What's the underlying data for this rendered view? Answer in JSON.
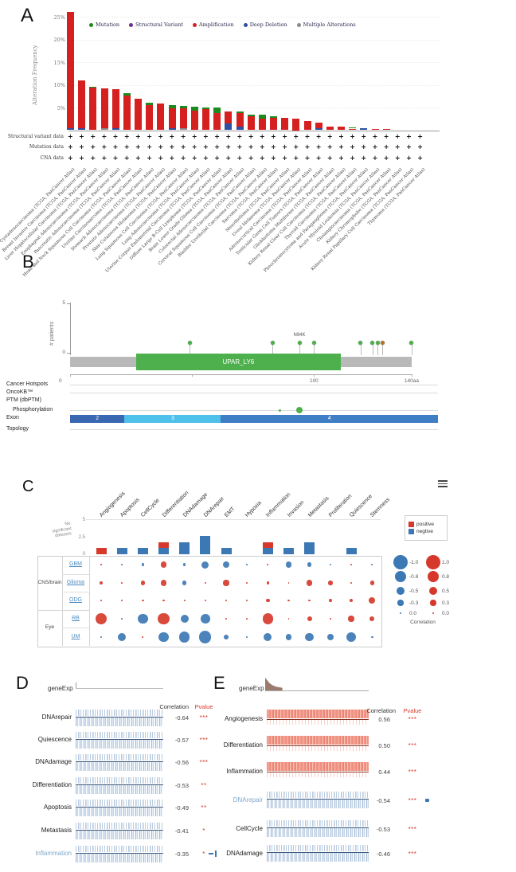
{
  "figure": {
    "panel_labels": {
      "a": "A",
      "b": "B",
      "c": "C",
      "d": "D",
      "e": "E"
    }
  },
  "panelA": {
    "ylabel": "Alteration Frequency",
    "yticks": [
      {
        "label": "25%",
        "value": 25
      },
      {
        "label": "20%",
        "value": 20
      },
      {
        "label": "15%",
        "value": 15
      },
      {
        "label": "10%",
        "value": 10
      },
      {
        "label": "5%",
        "value": 5
      }
    ],
    "legend": [
      {
        "label": "Mutation",
        "color": "#1d8a1d"
      },
      {
        "label": "Structural Variant",
        "color": "#6b2f8f"
      },
      {
        "label": "Amplification",
        "color": "#d61f1f"
      },
      {
        "label": "Deep Deletion",
        "color": "#2e4fa3"
      },
      {
        "label": "Multiple Alterations",
        "color": "#8a8a8a"
      }
    ],
    "data_rows": [
      "Structural variant data",
      "Mutation data",
      "CNA data"
    ],
    "plus_glyph": "+"
  },
  "panelB": {
    "ylabel": "# patients",
    "yticks": [
      "5",
      "0"
    ],
    "domain": {
      "label": "UPAR_LY6",
      "color": "#4db04d",
      "start_aa": 27,
      "end_aa": 111
    },
    "axis_ticks": [
      {
        "label": "0",
        "aa": 0
      },
      {
        "label": "",
        "aa": 50
      },
      {
        "label": "100",
        "aa": 100
      },
      {
        "label": "140aa",
        "aa": 140
      }
    ],
    "mutation_label": "N94K",
    "tracks": [
      "Cancer Hotspots",
      "OncoKB™",
      "PTM (dbPTM)",
      "Phosphorylation",
      "Exon",
      "Topology"
    ]
  },
  "panelC": {
    "menu_icon": "hamburger-icon",
    "ylabel_lines": [
      "No.",
      "significant",
      "datasets"
    ],
    "yticks": [
      {
        "label": "5",
        "value": 5
      },
      {
        "label": "2.5",
        "value": 2.5
      },
      {
        "label": "0",
        "value": 0
      }
    ],
    "top_legend": [
      {
        "label": "positive",
        "color": "#d6392b"
      },
      {
        "label": "negtive",
        "color": "#3c78b4"
      }
    ],
    "bubble_legend": {
      "title": "Correlation",
      "negative": [
        "-1.0",
        "-0.8",
        "-0.5",
        "-0.3",
        "0.0"
      ],
      "positive": [
        "1.0",
        "0.8",
        "0.5",
        "0.3",
        "0.0"
      ]
    },
    "row_groups": [
      {
        "name": "CNS/brain",
        "rows": [
          "GBM",
          "Glioma",
          "ODG"
        ]
      },
      {
        "name": "Eye",
        "rows": [
          "RB",
          "UM"
        ]
      }
    ]
  },
  "panelD": {
    "gene_label": "geneExp",
    "col_headers": {
      "correlation": "Correlation",
      "pvalue": "Pvalue"
    },
    "rows": [
      {
        "label": "DNArepair",
        "correlation": "-0.64",
        "pvalue": "***",
        "highlighted": false
      },
      {
        "label": "Quiescence",
        "correlation": "-0.57",
        "pvalue": "***",
        "highlighted": false
      },
      {
        "label": "DNAdamage",
        "correlation": "-0.56",
        "pvalue": "***",
        "highlighted": false
      },
      {
        "label": "Differentiation",
        "correlation": "-0.53",
        "pvalue": "**",
        "highlighted": false
      },
      {
        "label": "Apoptosis",
        "correlation": "-0.49",
        "pvalue": "**",
        "highlighted": false
      },
      {
        "label": "Metastasis",
        "correlation": "-0.41",
        "pvalue": "*",
        "highlighted": false
      },
      {
        "label": "Inflammation",
        "correlation": "-0.35",
        "pvalue": "*",
        "highlighted": true
      }
    ]
  },
  "panelE": {
    "gene_label": "geneExp",
    "col_headers": {
      "correlation": "Correlation",
      "pvalue": "Pvalue"
    },
    "rows": [
      {
        "label": "Angiogenesis",
        "correlation": "0.56",
        "pvalue": "***",
        "direction": "positive",
        "highlighted": false
      },
      {
        "label": "Differentiation",
        "correlation": "0.50",
        "pvalue": "***",
        "direction": "positive",
        "highlighted": false
      },
      {
        "label": "Inflammation",
        "correlation": "0.44",
        "pvalue": "***",
        "direction": "positive",
        "highlighted": false
      },
      {
        "label": "DNArepair",
        "correlation": "-0.54",
        "pvalue": "***",
        "direction": "negative",
        "highlighted": true
      },
      {
        "label": "CellCycle",
        "correlation": "-0.53",
        "pvalue": "***",
        "direction": "negative",
        "highlighted": false
      },
      {
        "label": "DNAdamage",
        "correlation": "-0.46",
        "pvalue": "***",
        "direction": "negative",
        "highlighted": false
      }
    ]
  },
  "chart_data": [
    {
      "id": "alteration-frequency",
      "type": "bar",
      "stacked": true,
      "title": "",
      "xlabel": "",
      "ylabel": "Alteration Frequency",
      "unit": "percent",
      "ylim": [
        0,
        27
      ],
      "categories": [
        "Ovarian Serous Cystadenocarcinoma (TCGA, PanCancer Atlas)",
        "Breast Invasive Carcinoma (TCGA, PanCancer Atlas)",
        "Liver Hepatocellular Carcinoma (TCGA, PanCancer Atlas)",
        "Esophageal Adenocarcinoma (TCGA, PanCancer Atlas)",
        "Pancreatic Adenocarcinoma (TCGA, PanCancer Atlas)",
        "Head and Neck Squamous Cell Carcinoma (TCGA, PanCancer Atlas)",
        "Uterine Carcinosarcoma (TCGA, PanCancer Atlas)",
        "Stomach Adenocarcinoma (TCGA, PanCancer Atlas)",
        "Prostate Adenocarcinoma (TCGA, PanCancer Atlas)",
        "Skin Cutaneous Melanoma (TCGA, PanCancer Atlas)",
        "Lung Squamous Cell Carcinoma (TCGA, PanCancer Atlas)",
        "Lung Adenocarcinoma (TCGA, PanCancer Atlas)",
        "Uterine Corpus Endometrial Carcinoma (TCGA, PanCancer Atlas)",
        "Diffuse Large B-Cell Lymphoma (TCGA, PanCancer Atlas)",
        "Brain Lower Grade Glioma (TCGA, PanCancer Atlas)",
        "Colorectal Adenocarcinoma (TCGA, PanCancer Atlas)",
        "Cervical Squamous Cell Carcinoma (TCGA, PanCancer Atlas)",
        "Bladder Urothelial Carcinoma (TCGA, PanCancer Atlas)",
        "Sarcoma (TCGA, PanCancer Atlas)",
        "Mesothelioma (TCGA, PanCancer Atlas)",
        "Uveal Melanoma (TCGA, PanCancer Atlas)",
        "Adrenocortical Carcinoma (TCGA, PanCancer Atlas)",
        "Testicular Germ Cell Tumors (TCGA, PanCancer Atlas)",
        "Glioblastoma Multiforme (TCGA, PanCancer Atlas)",
        "Kidney Renal Clear Cell Carcinoma (TCGA, PanCancer Atlas)",
        "Thyroid Carcinoma (TCGA, PanCancer Atlas)",
        "Pheochromocytoma and Paraganglioma (TCGA, PanCancer Atlas)",
        "Acute Myeloid Leukemia (TCGA, PanCancer Atlas)",
        "Cholangiocarcinoma (TCGA, PanCancer Atlas)",
        "Kidney Chromophobe (TCGA, PanCancer Atlas)",
        "Kidney Renal Papillary Cell Carcinoma (TCGA, PanCancer Atlas)",
        "Thymoma (TCGA, PanCancer Atlas)"
      ],
      "series": [
        {
          "name": "Mutation",
          "color": "#1d8a1d",
          "values": [
            0,
            0,
            0.3,
            0,
            0,
            0.5,
            0,
            0.5,
            0,
            0.8,
            0.4,
            0.9,
            0.3,
            1.3,
            0,
            0.3,
            0.5,
            0.8,
            0.3,
            0,
            0,
            0,
            0,
            0,
            0,
            0.2,
            0,
            0,
            0,
            0,
            0,
            0
          ]
        },
        {
          "name": "Amplification",
          "color": "#d61f1f",
          "values": [
            25.6,
            10.5,
            9.3,
            8.7,
            8.5,
            7.7,
            7.0,
            5.6,
            5.9,
            4.4,
            4.5,
            4.3,
            4.7,
            3.7,
            2.7,
            3.0,
            3.0,
            2.6,
            2.8,
            2.8,
            2.5,
            2.1,
            1.2,
            0.85,
            0.75,
            0.35,
            0,
            0.35,
            0.3,
            0,
            0,
            0
          ]
        },
        {
          "name": "Deep Deletion",
          "color": "#2e4fa3",
          "values": [
            0.4,
            0.4,
            0,
            0,
            0.5,
            0,
            0,
            0,
            0,
            0.4,
            0,
            0,
            0,
            0,
            1.5,
            0.8,
            0,
            0,
            0,
            0,
            0,
            0,
            0.5,
            0,
            0,
            0,
            0.4,
            0,
            0,
            0,
            0,
            0
          ]
        },
        {
          "name": "Multiple Alterations",
          "color": "#8a8a8a",
          "values": [
            0,
            0,
            0,
            0.5,
            0,
            0,
            0,
            0,
            0,
            0,
            0.4,
            0,
            0,
            0,
            0,
            0,
            0,
            0,
            0,
            0,
            0,
            0,
            0,
            0,
            0,
            0,
            0,
            0,
            0,
            0,
            0,
            0
          ]
        }
      ]
    },
    {
      "id": "plaur-lollipop",
      "type": "scatter",
      "ylabel": "# patients",
      "ylim": [
        0,
        5
      ],
      "xlim": [
        0,
        140
      ],
      "points": [
        {
          "x": 49,
          "y": 1,
          "color": "#4db04d"
        },
        {
          "x": 83,
          "y": 1,
          "color": "#4db04d"
        },
        {
          "x": 94,
          "y": 1,
          "color": "#4db04d",
          "label": "N94K"
        },
        {
          "x": 100,
          "y": 1,
          "color": "#4db04d"
        },
        {
          "x": 119,
          "y": 1,
          "color": "#4db04d"
        },
        {
          "x": 124,
          "y": 1,
          "color": "#4db04d"
        },
        {
          "x": 126,
          "y": 1,
          "color": "#4db04d"
        },
        {
          "x": 128,
          "y": 1,
          "color": "#b5722f"
        },
        {
          "x": 140,
          "y": 1,
          "color": "#4db04d"
        }
      ],
      "phosphorylation_sites": [
        {
          "x": 86,
          "size": "small"
        },
        {
          "x": 94,
          "size": "large"
        }
      ],
      "exons": [
        {
          "label": "2",
          "frac_start": 0,
          "frac_end": 0.148,
          "color": "#3a67b1"
        },
        {
          "label": "3",
          "frac_start": 0.148,
          "frac_end": 0.41,
          "color": "#4fc0ea"
        },
        {
          "label": "4",
          "frac_start": 0.41,
          "frac_end": 1,
          "color": "#3f7ec4"
        }
      ]
    },
    {
      "id": "significant-datasets",
      "type": "bar",
      "stacked": true,
      "ylabel": "No. significant datasets",
      "ylim": [
        0,
        5
      ],
      "categories": [
        "Angiogenesis",
        "Apoptosis",
        "CellCycle",
        "Differentiation",
        "DNAdamage",
        "DNArepair",
        "EMT",
        "Hypoxia",
        "Inflammation",
        "Invasion",
        "Metastasis",
        "Proliferation",
        "Quiescence",
        "Stemness"
      ],
      "series": [
        {
          "name": "negtive",
          "color": "#3c78b4",
          "values": [
            0,
            1,
            1,
            1,
            2,
            3,
            1,
            0,
            1,
            1,
            2,
            0,
            1,
            0
          ]
        },
        {
          "name": "positive",
          "color": "#d6392b",
          "values": [
            1,
            0,
            0,
            1,
            0,
            0,
            0,
            0,
            1,
            0,
            0,
            0,
            0,
            0
          ]
        }
      ]
    },
    {
      "id": "correlation-bubbles",
      "type": "heatmap",
      "columns": [
        "Angiogenesis",
        "Apoptosis",
        "CellCycle",
        "Differentiation",
        "DNAdamage",
        "DNArepair",
        "EMT",
        "Hypoxia",
        "Inflammation",
        "Invasion",
        "Metastasis",
        "Proliferation",
        "Quiescence",
        "Stemness"
      ],
      "rows": [
        "GBM",
        "Glioma",
        "ODG",
        "RB",
        "UM"
      ],
      "values": [
        [
          0.05,
          -0.1,
          -0.2,
          0.4,
          -0.2,
          -0.5,
          -0.45,
          -0.05,
          0.05,
          -0.4,
          -0.3,
          -0.15,
          0.05,
          -0.05
        ],
        [
          0.25,
          0.05,
          0.3,
          0.4,
          -0.3,
          0.15,
          0.4,
          0.05,
          0.2,
          0.1,
          0.4,
          0.3,
          0.05,
          0.3
        ],
        [
          0.1,
          0.05,
          0.15,
          0.15,
          0.1,
          0.1,
          0.05,
          0.1,
          0.25,
          0.15,
          0.15,
          0.2,
          0.25,
          0.45
        ],
        [
          0.8,
          -0.1,
          -0.7,
          0.8,
          -0.55,
          -0.65,
          0.1,
          0.05,
          0.75,
          0.05,
          0.35,
          0.1,
          0.4,
          0.35
        ],
        [
          -0.1,
          -0.55,
          0.05,
          -0.7,
          -0.75,
          -0.85,
          -0.35,
          -0.05,
          -0.55,
          -0.4,
          -0.6,
          -0.45,
          -0.7,
          -0.15
        ]
      ]
    }
  ]
}
